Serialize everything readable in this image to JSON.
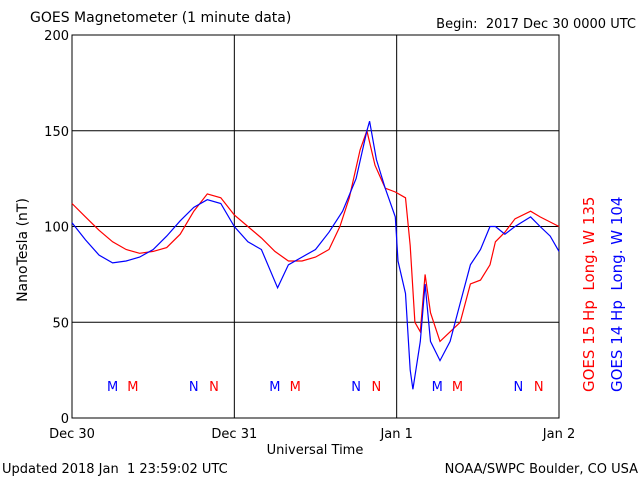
{
  "chart_data": {
    "type": "line",
    "title": "GOES Magnetometer (1 minute data)",
    "begin_label": "Begin:  2017 Dec 30 0000 UTC",
    "ylabel": "NanoTesla (nT)",
    "xlabel": "Universal Time",
    "updated": "Updated 2018 Jan  1 23:59:02 UTC",
    "source": "NOAA/SWPC Boulder, CO USA",
    "xlim": [
      0,
      72
    ],
    "ylim": [
      0,
      200
    ],
    "xticks": [
      {
        "value": 0,
        "label": "Dec 30"
      },
      {
        "value": 24,
        "label": "Dec 31"
      },
      {
        "value": 48,
        "label": "Jan 1"
      },
      {
        "value": 72,
        "label": "Jan 2"
      }
    ],
    "yticks": [
      0,
      50,
      100,
      150,
      200
    ],
    "grid": true,
    "series": [
      {
        "name": "GOES 15 Hp  Long. W 135",
        "color": "#ff0000",
        "x": [
          0,
          2,
          4,
          6,
          8,
          10,
          12,
          14,
          16,
          18,
          20,
          22,
          24,
          26,
          28,
          30,
          32,
          34,
          36,
          38,
          39.6,
          41,
          42.6,
          43.6,
          44.8,
          46.3,
          47.8,
          49.3,
          50,
          50.7,
          51.5,
          52.2,
          53,
          54.4,
          55.9,
          57.4,
          58.9,
          60.4,
          61.8,
          62.6,
          64,
          65.5,
          67.8,
          69.2,
          72
        ],
        "values": [
          112,
          105,
          98,
          92,
          88,
          86,
          87,
          89,
          96,
          108,
          117,
          115,
          106,
          100,
          94,
          87,
          82,
          82,
          84,
          88,
          100,
          115,
          140,
          150,
          132,
          120,
          118,
          115,
          90,
          50,
          45,
          75,
          55,
          40,
          45,
          50,
          70,
          72,
          80,
          92,
          97,
          104,
          108,
          105,
          100
        ]
      },
      {
        "name": "GOES 14 Hp  Long. W 104",
        "color": "#0000ff",
        "x": [
          0,
          2,
          4,
          6,
          8,
          10,
          12,
          14,
          16,
          18,
          20,
          22,
          24,
          26,
          28,
          30.4,
          32,
          34,
          36,
          38,
          40,
          42,
          43.6,
          44,
          45,
          46.3,
          47.8,
          48.2,
          49.3,
          50,
          50.4,
          51.5,
          52.2,
          53,
          54.4,
          55.9,
          57.4,
          58.9,
          60.4,
          61.8,
          62.6,
          64,
          65.5,
          67.8,
          69.2,
          70.7,
          72
        ],
        "values": [
          102,
          93,
          85,
          81,
          82,
          84,
          88,
          95,
          103,
          110,
          114,
          112,
          100,
          92,
          88,
          68,
          80,
          84,
          88,
          97,
          108,
          125,
          150,
          155,
          135,
          120,
          105,
          82,
          65,
          25,
          15,
          40,
          70,
          40,
          30,
          40,
          60,
          80,
          88,
          100,
          100,
          96,
          100,
          105,
          100,
          95,
          87
        ]
      }
    ],
    "annotations": [
      {
        "label": "M",
        "x": 6,
        "color": "#0000ff"
      },
      {
        "label": "M",
        "x": 9,
        "color": "#ff0000"
      },
      {
        "label": "N",
        "x": 18,
        "color": "#0000ff"
      },
      {
        "label": "N",
        "x": 21,
        "color": "#ff0000"
      },
      {
        "label": "M",
        "x": 30,
        "color": "#0000ff"
      },
      {
        "label": "M",
        "x": 33,
        "color": "#ff0000"
      },
      {
        "label": "N",
        "x": 42,
        "color": "#0000ff"
      },
      {
        "label": "N",
        "x": 45,
        "color": "#ff0000"
      },
      {
        "label": "M",
        "x": 54,
        "color": "#0000ff"
      },
      {
        "label": "M",
        "x": 57,
        "color": "#ff0000"
      },
      {
        "label": "N",
        "x": 66,
        "color": "#0000ff"
      },
      {
        "label": "N",
        "x": 69,
        "color": "#ff0000"
      }
    ]
  }
}
